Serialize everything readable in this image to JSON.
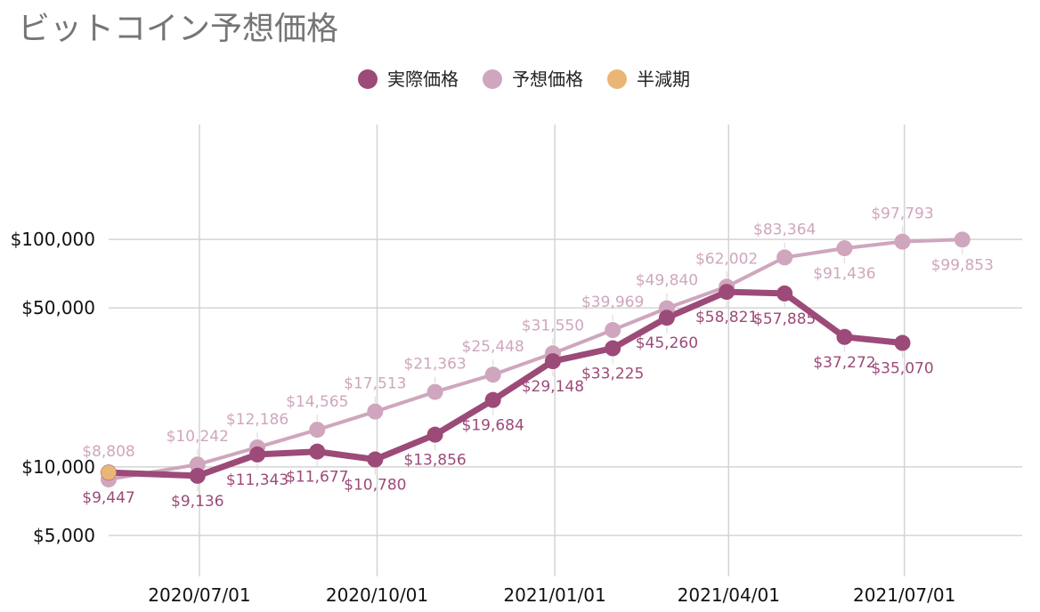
{
  "chart_data": {
    "type": "line",
    "title": "ビットコイン予想価格",
    "y_scale": "log",
    "ylim": [
      3300,
      320000
    ],
    "xlim": [
      "2020-05-15",
      "2021-08-31"
    ],
    "y_ticks": [
      {
        "value": 100000,
        "label": "$100,000"
      },
      {
        "value": 50000,
        "label": "$50,000"
      },
      {
        "value": 10000,
        "label": "$10,000"
      },
      {
        "value": 5000,
        "label": "$5,000"
      }
    ],
    "x_ticks": [
      {
        "date": "2020-07-01",
        "label": "2020/07/01"
      },
      {
        "date": "2020-10-01",
        "label": "2020/10/01"
      },
      {
        "date": "2021-01-01",
        "label": "2021/01/01"
      },
      {
        "date": "2021-04-01",
        "label": "2021/04/01"
      },
      {
        "date": "2021-07-01",
        "label": "2021/07/01"
      }
    ],
    "grid": true,
    "legend_position": "top-center",
    "series": [
      {
        "name": "実際価格",
        "color": "#9c4a78",
        "points": [
          {
            "date": "2020-05-15",
            "value": 9447,
            "label": "$9,447",
            "label_pos": "below"
          },
          {
            "date": "2020-06-30",
            "value": 9136,
            "label": "$9,136",
            "label_pos": "below"
          },
          {
            "date": "2020-07-31",
            "value": 11343,
            "label": "$11,343",
            "label_pos": "below"
          },
          {
            "date": "2020-08-31",
            "value": 11677,
            "label": "$11,677",
            "label_pos": "below"
          },
          {
            "date": "2020-09-30",
            "value": 10780,
            "label": "$10,780",
            "label_pos": "below"
          },
          {
            "date": "2020-10-31",
            "value": 13856,
            "label": "$13,856",
            "label_pos": "below"
          },
          {
            "date": "2020-11-30",
            "value": 19684,
            "label": "$19,684",
            "label_pos": "below"
          },
          {
            "date": "2020-12-31",
            "value": 29148,
            "label": "$29,148",
            "label_pos": "below"
          },
          {
            "date": "2021-01-31",
            "value": 33225,
            "label": "$33,225",
            "label_pos": "below"
          },
          {
            "date": "2021-02-28",
            "value": 45260,
            "label": "$45,260",
            "label_pos": "below"
          },
          {
            "date": "2021-03-31",
            "value": 58821,
            "label": "$58,821",
            "label_pos": "below"
          },
          {
            "date": "2021-04-30",
            "value": 57885,
            "label": "$57,885",
            "label_pos": "below"
          },
          {
            "date": "2021-05-31",
            "value": 37272,
            "label": "$37,272",
            "label_pos": "below"
          },
          {
            "date": "2021-06-30",
            "value": 35070,
            "label": "$35,070",
            "label_pos": "below"
          }
        ]
      },
      {
        "name": "予想価格",
        "color": "#cfa6bd",
        "points": [
          {
            "date": "2020-05-15",
            "value": 8808,
            "label": "$8,808",
            "label_pos": "above"
          },
          {
            "date": "2020-06-30",
            "value": 10242,
            "label": "$10,242",
            "label_pos": "above"
          },
          {
            "date": "2020-07-31",
            "value": 12186,
            "label": "$12,186",
            "label_pos": "above"
          },
          {
            "date": "2020-08-31",
            "value": 14565,
            "label": "$14,565",
            "label_pos": "above"
          },
          {
            "date": "2020-09-30",
            "value": 17513,
            "label": "$17,513",
            "label_pos": "above"
          },
          {
            "date": "2020-10-31",
            "value": 21363,
            "label": "$21,363",
            "label_pos": "above"
          },
          {
            "date": "2020-11-30",
            "value": 25448,
            "label": "$25,448",
            "label_pos": "above"
          },
          {
            "date": "2020-12-31",
            "value": 31550,
            "label": "$31,550",
            "label_pos": "above"
          },
          {
            "date": "2021-01-31",
            "value": 39969,
            "label": "$39,969",
            "label_pos": "above"
          },
          {
            "date": "2021-02-28",
            "value": 49840,
            "label": "$49,840",
            "label_pos": "above"
          },
          {
            "date": "2021-03-31",
            "value": 62002,
            "label": "$62,002",
            "label_pos": "above"
          },
          {
            "date": "2021-04-30",
            "value": 83364,
            "label": "$83,364",
            "label_pos": "above"
          },
          {
            "date": "2021-05-31",
            "value": 91436,
            "label": "$91,436",
            "label_pos": "below"
          },
          {
            "date": "2021-06-30",
            "value": 97793,
            "label": "$97,793",
            "label_pos": "above"
          },
          {
            "date": "2021-07-31",
            "value": 99853,
            "label": "$99,853",
            "label_pos": "below"
          }
        ]
      },
      {
        "name": "半減期",
        "color": "#eab676",
        "points": [
          {
            "date": "2020-05-15",
            "value": 9447
          }
        ]
      }
    ]
  }
}
